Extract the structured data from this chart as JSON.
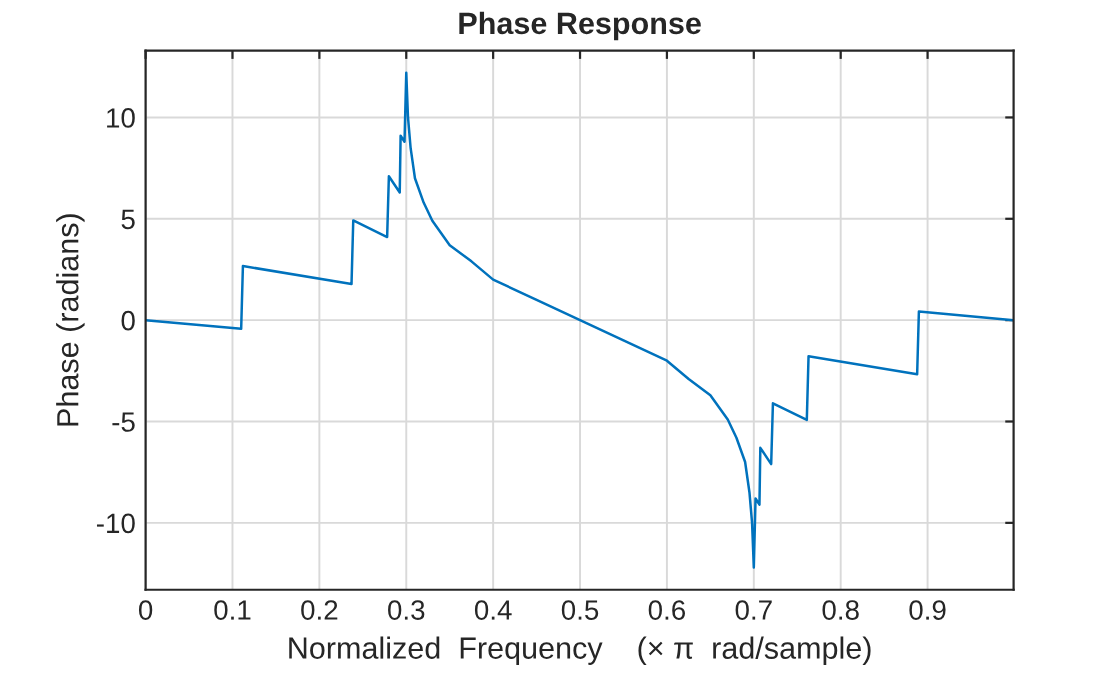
{
  "chart_data": {
    "type": "line",
    "title": "Phase Response",
    "xlabel": "Normalized  Frequency    (× π  rad/sample)",
    "ylabel": "Phase (radians)",
    "x": [
      0,
      0.11,
      0.112,
      0.237,
      0.239,
      0.278,
      0.28,
      0.2925,
      0.2935,
      0.298,
      0.3,
      0.302,
      0.305,
      0.31,
      0.32,
      0.33,
      0.35,
      0.375,
      0.4,
      0.45,
      0.5,
      0.55,
      0.6,
      0.625,
      0.65,
      0.67,
      0.68,
      0.69,
      0.695,
      0.698,
      0.7,
      0.702,
      0.7065,
      0.7075,
      0.72,
      0.722,
      0.761,
      0.763,
      0.888,
      0.89,
      0.999
    ],
    "series": [
      {
        "color": "#0072bd",
        "values": [
          0,
          -0.43,
          2.67,
          1.78,
          4.92,
          4.1,
          7.1,
          6.3,
          9.1,
          8.8,
          12.2,
          10.0,
          8.5,
          7.0,
          5.8,
          4.9,
          3.7,
          2.9,
          2.0,
          1.0,
          0,
          -1.0,
          -2.0,
          -2.9,
          -3.7,
          -4.9,
          -5.8,
          -7.0,
          -8.5,
          -10.0,
          -12.2,
          -8.8,
          -9.1,
          -6.3,
          -7.1,
          -4.1,
          -4.92,
          -1.78,
          -2.67,
          0.43,
          0
        ]
      }
    ],
    "xlim": [
      0,
      0.999
    ],
    "ylim": [
      -13.3,
      13.3
    ],
    "xticks": [
      0,
      0.1,
      0.2,
      0.3,
      0.4,
      0.5,
      0.6,
      0.7,
      0.8,
      0.9
    ],
    "yticks": [
      -10,
      -5,
      0,
      5,
      10
    ],
    "grid": true,
    "legend": false,
    "line_style": "solid",
    "marker": "none"
  }
}
